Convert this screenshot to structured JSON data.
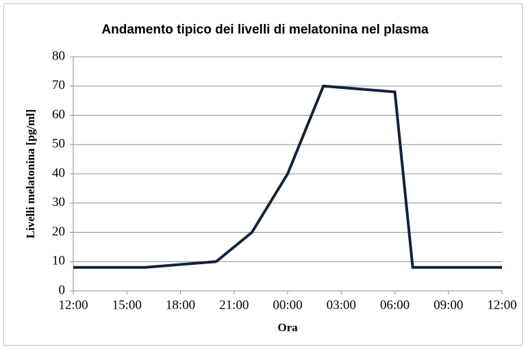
{
  "chart_data": {
    "type": "line",
    "title": "Andamento tipico dei livelli di melatonina nel plasma",
    "x_label": "Ora",
    "y_label": "Livelli melatonina [pg/ml]",
    "x": [
      0,
      4,
      8,
      10,
      12,
      14,
      18,
      19,
      24
    ],
    "series": [
      {
        "name": "Melatonina",
        "color": "#14213d",
        "values": [
          8,
          8,
          10,
          20,
          40,
          70,
          68,
          8,
          8
        ]
      }
    ],
    "xlim": [
      0,
      24
    ],
    "xticks": [
      {
        "value": 0,
        "label": "12:00"
      },
      {
        "value": 3,
        "label": "15:00"
      },
      {
        "value": 6,
        "label": "18:00"
      },
      {
        "value": 9,
        "label": "21:00"
      },
      {
        "value": 12,
        "label": "00:00"
      },
      {
        "value": 15,
        "label": "03:00"
      },
      {
        "value": 18,
        "label": "06:00"
      },
      {
        "value": 21,
        "label": "09:00"
      },
      {
        "value": 24,
        "label": "12:00"
      }
    ],
    "ylim": [
      0,
      80
    ],
    "yticks": [
      0,
      10,
      20,
      30,
      40,
      50,
      60,
      70,
      80
    ],
    "grid": true
  }
}
